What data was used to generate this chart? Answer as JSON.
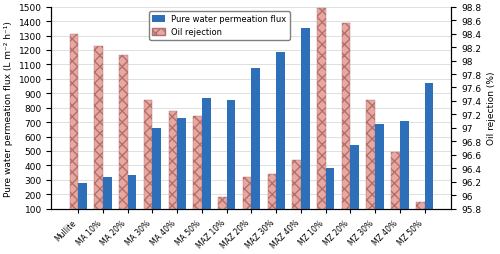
{
  "categories": [
    "Mullite",
    "MA 10%",
    "MA 20%",
    "MA 30%",
    "MA 40%",
    "MA 50%",
    "MAZ 10%",
    "MAZ 20%",
    "MAZ 30%",
    "MAZ 40%",
    "MZ 10%",
    "MZ 20%",
    "MZ 30%",
    "MZ 40%",
    "MZ 50%"
  ],
  "flux": [
    275,
    320,
    335,
    660,
    730,
    865,
    855,
    1075,
    1185,
    1350,
    385,
    540,
    690,
    705,
    970
  ],
  "rejection": [
    1310,
    1225,
    1165,
    855,
    775,
    740,
    180,
    320,
    340,
    435,
    1490,
    1390,
    855,
    495,
    150
  ],
  "flux_color": "#2e6fba",
  "rejection_color": "#e8a8a0",
  "rejection_hatch": "xxx",
  "left_ylabel": "Pure water permeation flux (L m⁻² h⁻¹)",
  "right_ylabel": "Oil rejection (%)",
  "ylim_left": [
    100,
    1500
  ],
  "ylim_right": [
    95.8,
    98.8
  ],
  "yticks_left": [
    100,
    200,
    300,
    400,
    500,
    600,
    700,
    800,
    900,
    1000,
    1100,
    1200,
    1300,
    1400,
    1500
  ],
  "yticks_right": [
    95.8,
    96.0,
    96.2,
    96.4,
    96.6,
    96.8,
    97.0,
    97.2,
    97.4,
    97.6,
    97.8,
    98.0,
    98.2,
    98.4,
    98.6,
    98.8
  ],
  "legend_flux": "Pure water permeation flux",
  "legend_rejection": "Oil rejection",
  "bar_width": 0.35,
  "figsize": [
    5.0,
    2.55
  ],
  "dpi": 100
}
